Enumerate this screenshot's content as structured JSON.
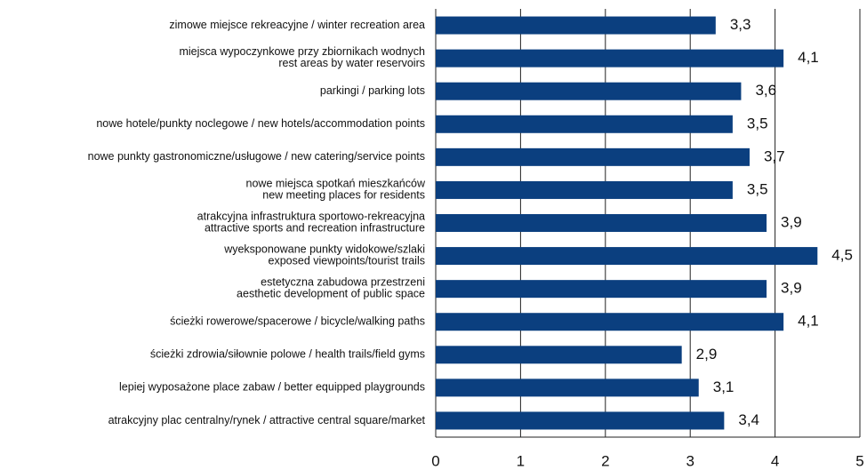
{
  "chart_data": {
    "type": "bar",
    "orientation": "horizontal",
    "categories": [
      "zimowe miejsce rekreacyjne / winter recreation area",
      "miejsca wypoczynkowe przy zbiornikach wodnych\nrest areas by water reservoirs",
      "parkingi / parking lots",
      "nowe hotele/punkty noclegowe / new hotels/accommodation points",
      "nowe punkty gastronomiczne/usługowe / new catering/service points",
      "nowe miejsca spotkań mieszkańców\nnew meeting places for residents",
      "atrakcyjna infrastruktura sportowo-rekreacyjna\nattractive sports and recreation infrastructure",
      "wyeksponowane punkty widokowe/szlaki\nexposed viewpoints/tourist trails",
      "estetyczna zabudowa przestrzeni\naesthetic development of public space",
      "ścieżki rowerowe/spacerowe / bicycle/walking paths",
      "ścieżki zdrowia/siłownie polowe / health trails/field gyms",
      "lepiej wyposażone place zabaw / better equipped playgrounds",
      "atrakcyjny plac centralny/rynek / attractive central square/market"
    ],
    "values": [
      3.3,
      4.1,
      3.6,
      3.5,
      3.7,
      3.5,
      3.9,
      4.5,
      3.9,
      4.1,
      2.9,
      3.1,
      3.4
    ],
    "value_labels": [
      "3,3",
      "4,1",
      "3,6",
      "3,5",
      "3,7",
      "3,5",
      "3,9",
      "4,5",
      "3,9",
      "4,1",
      "2,9",
      "3,1",
      "3,4"
    ],
    "color": "#0b3f7f",
    "xlim": [
      0,
      5
    ],
    "xticks": [
      0,
      1,
      2,
      3,
      4,
      5
    ],
    "grid": true
  }
}
